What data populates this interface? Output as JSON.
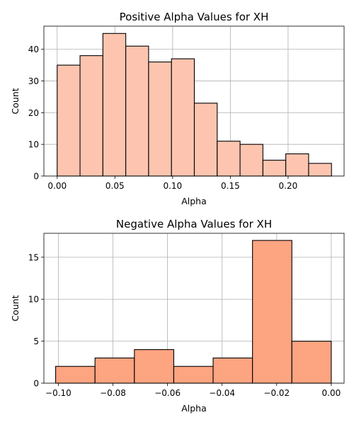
{
  "chart_data": [
    {
      "type": "bar",
      "title": "Positive Alpha Values for XH",
      "xlabel": "Alpha",
      "ylabel": "Count",
      "color": "#fdc5b0",
      "grid": true,
      "xlim": [
        -0.0115,
        0.2485
      ],
      "ylim": [
        0,
        47.3
      ],
      "xticks": [
        0.0,
        0.05,
        0.1,
        0.15,
        0.2
      ],
      "xtick_labels": [
        "0.00",
        "0.05",
        "0.10",
        "0.15",
        "0.20"
      ],
      "yticks": [
        0,
        10,
        20,
        30,
        40
      ],
      "ytick_labels": [
        "0",
        "10",
        "20",
        "30",
        "40"
      ],
      "bin_edges": [
        0.0,
        0.0198,
        0.0396,
        0.0594,
        0.0792,
        0.099,
        0.1188,
        0.1386,
        0.1584,
        0.1782,
        0.198,
        0.2178,
        0.2376
      ],
      "values": [
        35,
        38,
        45,
        41,
        36,
        37,
        23,
        11,
        10,
        5,
        7,
        4
      ]
    },
    {
      "type": "bar",
      "title": "Negative Alpha Values for XH",
      "xlabel": "Alpha",
      "ylabel": "Count",
      "color": "#fda481",
      "grid": true,
      "xlim": [
        -0.1053,
        0.0047
      ],
      "ylim": [
        0,
        17.85
      ],
      "xticks": [
        -0.1,
        -0.08,
        -0.06,
        -0.04,
        -0.02,
        0.0
      ],
      "xtick_labels": [
        "−0.10",
        "−0.08",
        "−0.06",
        "−0.04",
        "−0.02",
        "0.00"
      ],
      "yticks": [
        0,
        5,
        10,
        15
      ],
      "ytick_labels": [
        "0",
        "5",
        "10",
        "15"
      ],
      "bin_edges": [
        -0.101,
        -0.08657,
        -0.07214,
        -0.05771,
        -0.04329,
        -0.02886,
        -0.01443,
        0.0
      ],
      "values": [
        2,
        3,
        4,
        2,
        3,
        17,
        5
      ]
    }
  ]
}
